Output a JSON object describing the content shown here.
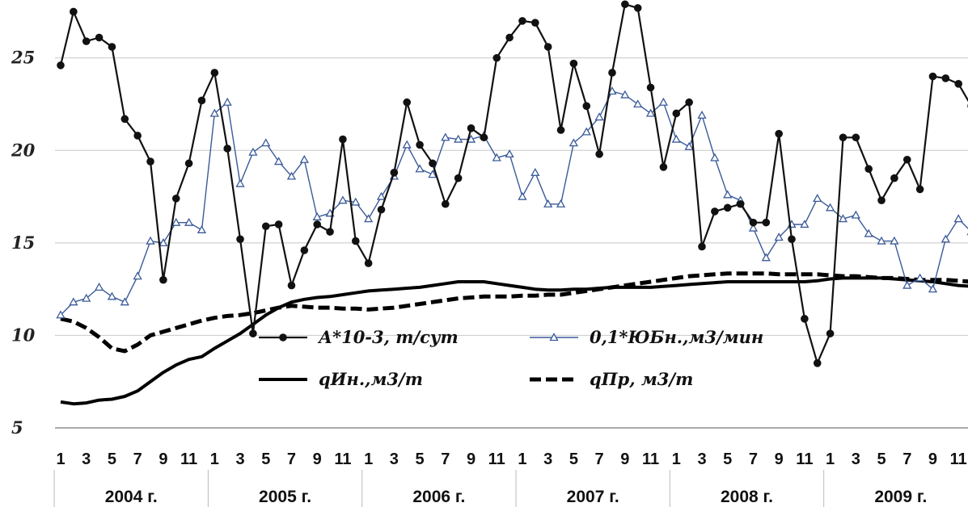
{
  "chart_data": {
    "type": "line",
    "ylim": [
      5,
      28
    ],
    "yticks": [
      5,
      10,
      15,
      20,
      25
    ],
    "grid": true,
    "legend_position": "center",
    "month_labels": [
      "1",
      "",
      "3",
      "",
      "5",
      "",
      "7",
      "",
      "9",
      "",
      "11",
      ""
    ],
    "years": [
      "2004 г.",
      "2005 г.",
      "2006 г.",
      "2007 г.",
      "2008 г.",
      "2009 г."
    ],
    "series": [
      {
        "name": "А*10-3, т/сут",
        "color": "#111111",
        "style": "line-dots",
        "values": [
          24.6,
          27.5,
          25.9,
          26.1,
          25.6,
          21.7,
          20.8,
          19.4,
          13.0,
          17.4,
          19.3,
          22.7,
          24.2,
          20.1,
          15.2,
          10.1,
          15.9,
          16.0,
          12.7,
          14.6,
          16.0,
          15.6,
          20.6,
          15.1,
          13.9,
          16.8,
          18.8,
          22.6,
          20.3,
          19.3,
          17.1,
          18.5,
          21.2,
          20.7,
          25.0,
          26.1,
          27.0,
          26.9,
          25.6,
          21.1,
          24.7,
          22.4,
          19.8,
          24.2,
          27.9,
          27.7,
          23.4,
          19.1,
          22.0,
          22.6,
          14.8,
          16.7,
          16.9,
          17.1,
          16.1,
          16.1,
          20.9,
          15.2,
          10.9,
          8.5,
          10.1,
          20.7,
          20.7,
          19.0,
          17.3,
          18.5,
          19.5,
          17.9,
          24.0,
          23.9,
          23.6,
          22.4
        ]
      },
      {
        "name": "0,1*ЮБн.,м3/мин",
        "color": "#3a5a99",
        "style": "line-triangles",
        "values": [
          11.1,
          11.8,
          12.0,
          12.6,
          12.1,
          11.8,
          13.2,
          15.1,
          15.0,
          16.1,
          16.1,
          15.7,
          22.0,
          22.6,
          18.2,
          19.9,
          20.4,
          19.4,
          18.6,
          19.5,
          16.4,
          16.6,
          17.3,
          17.2,
          16.3,
          17.5,
          18.6,
          20.3,
          19.0,
          18.7,
          20.7,
          20.6,
          20.6,
          20.8,
          19.6,
          19.8,
          17.5,
          18.8,
          17.1,
          17.1,
          20.4,
          21.0,
          21.8,
          23.2,
          23.0,
          22.5,
          22.0,
          22.6,
          20.6,
          20.2,
          21.9,
          19.6,
          17.6,
          17.3,
          15.8,
          14.2,
          15.3,
          16.0,
          16.0,
          17.4,
          16.9,
          16.3,
          16.5,
          15.5,
          15.1,
          15.1,
          12.7,
          13.1,
          12.5,
          15.2,
          16.3,
          15.6
        ]
      },
      {
        "name": "qИн.,м3/т",
        "color": "#000000",
        "style": "solid",
        "values": [
          6.4,
          6.3,
          6.35,
          6.5,
          6.55,
          6.7,
          7.0,
          7.5,
          8.0,
          8.4,
          8.7,
          8.85,
          9.3,
          9.7,
          10.1,
          10.6,
          11.1,
          11.5,
          11.8,
          11.95,
          12.05,
          12.1,
          12.2,
          12.3,
          12.4,
          12.45,
          12.5,
          12.55,
          12.6,
          12.7,
          12.8,
          12.9,
          12.9,
          12.9,
          12.8,
          12.7,
          12.6,
          12.5,
          12.45,
          12.45,
          12.5,
          12.5,
          12.55,
          12.6,
          12.6,
          12.6,
          12.6,
          12.65,
          12.7,
          12.75,
          12.8,
          12.85,
          12.9,
          12.9,
          12.9,
          12.9,
          12.9,
          12.9,
          12.9,
          12.95,
          13.05,
          13.1,
          13.1,
          13.1,
          13.1,
          13.05,
          13.0,
          12.95,
          12.9,
          12.8,
          12.7,
          12.65
        ]
      },
      {
        "name": "qПр, м3/т",
        "color": "#000000",
        "style": "dashed",
        "values": [
          10.9,
          10.75,
          10.4,
          9.9,
          9.3,
          9.15,
          9.5,
          10.0,
          10.2,
          10.4,
          10.6,
          10.8,
          10.95,
          11.05,
          11.1,
          11.2,
          11.35,
          11.5,
          11.6,
          11.55,
          11.5,
          11.5,
          11.45,
          11.45,
          11.4,
          11.45,
          11.5,
          11.6,
          11.7,
          11.8,
          11.9,
          12.0,
          12.05,
          12.1,
          12.1,
          12.1,
          12.15,
          12.15,
          12.2,
          12.2,
          12.3,
          12.4,
          12.5,
          12.6,
          12.7,
          12.8,
          12.9,
          13.0,
          13.1,
          13.2,
          13.25,
          13.3,
          13.35,
          13.35,
          13.35,
          13.35,
          13.3,
          13.3,
          13.3,
          13.3,
          13.25,
          13.2,
          13.2,
          13.15,
          13.1,
          13.1,
          13.05,
          13.0,
          13.0,
          13.0,
          12.95,
          12.9
        ]
      }
    ]
  }
}
